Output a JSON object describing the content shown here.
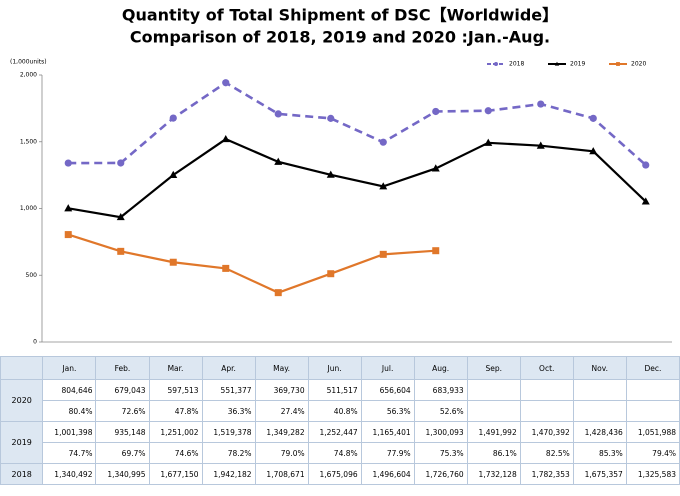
{
  "chart_data": {
    "type": "line",
    "title": "Quantity of Total Shipment of DSC【Worldwide】",
    "subtitle": "Comparison of 2018, 2019 and 2020 :Jan.-Aug.",
    "y_unit_label": "(1,000units)",
    "categories": [
      "Jan.",
      "Feb.",
      "Mar.",
      "Apr.",
      "May.",
      "Jun.",
      "Jul.",
      "Aug.",
      "Sep.",
      "Oct.",
      "Nov.",
      "Dec."
    ],
    "ylim": [
      0,
      2000
    ],
    "yticks": [
      0,
      500,
      {
        "value": 1000,
        "label": "1,000"
      },
      {
        "value": 1500,
        "label": "1,500"
      },
      {
        "value": 2000,
        "label": "2,000"
      }
    ],
    "legend": "top-right",
    "series": [
      {
        "name": "2018",
        "color": "#7468c6",
        "line_style": "dashed",
        "marker": "circle",
        "values": [
          1340.492,
          1340.995,
          1677.15,
          1942.182,
          1708.671,
          1675.096,
          1496.604,
          1726.76,
          1732.128,
          1782.353,
          1675.357,
          1325.583
        ]
      },
      {
        "name": "2019",
        "color": "#000000",
        "line_style": "solid",
        "marker": "triangle",
        "values": [
          1001.398,
          935.148,
          1251.002,
          1519.378,
          1349.282,
          1252.447,
          1165.401,
          1300.093,
          1491.992,
          1470.392,
          1428.436,
          1051.988
        ]
      },
      {
        "name": "2020",
        "color": "#e0772a",
        "line_style": "solid",
        "marker": "square",
        "values": [
          804.646,
          679.043,
          597.513,
          551.377,
          369.73,
          511.517,
          656.604,
          683.933,
          null,
          null,
          null,
          null
        ]
      }
    ]
  },
  "table": {
    "rows": [
      {
        "year": "2020",
        "units": [
          "804,646",
          "679,043",
          "597,513",
          "551,377",
          "369,730",
          "511,517",
          "656,604",
          "683,933"
        ],
        "ratio": [
          "80.4%",
          "72.6%",
          "47.8%",
          "36.3%",
          "27.4%",
          "40.8%",
          "56.3%",
          "52.6%"
        ]
      },
      {
        "year": "2019",
        "units": [
          "1,001,398",
          "935,148",
          "1,251,002",
          "1,519,378",
          "1,349,282",
          "1,252,447",
          "1,165,401",
          "1,300,093",
          "1,491,992",
          "1,470,392",
          "1,428,436",
          "1,051,988"
        ],
        "ratio": [
          "74.7%",
          "69.7%",
          "74.6%",
          "78.2%",
          "79.0%",
          "74.8%",
          "77.9%",
          "75.3%",
          "86.1%",
          "82.5%",
          "85.3%",
          "79.4%"
        ]
      },
      {
        "year": "2018",
        "units": [
          "1,340,492",
          "1,340,995",
          "1,677,150",
          "1,942,182",
          "1,708,671",
          "1,675,096",
          "1,496,604",
          "1,726,760",
          "1,732,128",
          "1,782,353",
          "1,675,357",
          "1,325,583"
        ]
      }
    ]
  }
}
